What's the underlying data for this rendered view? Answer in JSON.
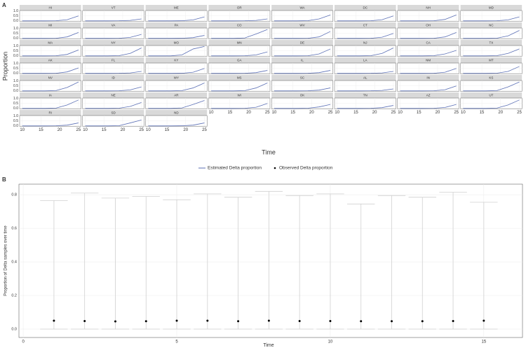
{
  "chart_data": [
    {
      "type": "small-multiples",
      "panel_label": "A",
      "xlabel": "Time",
      "ylabel": "Proportion",
      "x": [
        10,
        13,
        16,
        19,
        22,
        25
      ],
      "xlim": [
        9.3,
        25.7
      ],
      "ylim": [
        -0.05,
        1.05
      ],
      "xticks": [
        10,
        15,
        20,
        25
      ],
      "yticks": [
        {
          "value": 0,
          "label": "0.0"
        },
        {
          "value": 0.5,
          "label": "0.5"
        },
        {
          "value": 1,
          "label": "1.0"
        }
      ],
      "color": "#5b6fb5",
      "band_color": "#b3b3b3",
      "legend": [
        {
          "name": "Estimated Delta proportion",
          "color": "#5b6fb5"
        },
        {
          "name": "Observed Delta proportion",
          "color": "#000000"
        }
      ],
      "panels": [
        {
          "name": "HI",
          "values": [
            0,
            0,
            0,
            0.01,
            0.12,
            0.5
          ]
        },
        {
          "name": "VT",
          "values": [
            0,
            0,
            0,
            0.01,
            0.05,
            0.2
          ]
        },
        {
          "name": "ME",
          "values": [
            0,
            0,
            0,
            0.01,
            0.1,
            0.4
          ]
        },
        {
          "name": "OR",
          "values": [
            0,
            0,
            0,
            0.01,
            0.05,
            0.2
          ]
        },
        {
          "name": "WA",
          "values": [
            0,
            0,
            0,
            0.02,
            0.2,
            0.6
          ]
        },
        {
          "name": "DC",
          "values": [
            0,
            0,
            0,
            0.01,
            0.12,
            0.5
          ]
        },
        {
          "name": "NH",
          "values": [
            0,
            0,
            0,
            0.01,
            0.15,
            0.6
          ]
        },
        {
          "name": "MD",
          "values": [
            0,
            0,
            0,
            0.01,
            0.1,
            0.4
          ]
        },
        {
          "name": "MI",
          "values": [
            0,
            0,
            0,
            0.01,
            0.15,
            0.6
          ]
        },
        {
          "name": "VA",
          "values": [
            0,
            0,
            0,
            0.01,
            0.1,
            0.4
          ]
        },
        {
          "name": "PA",
          "values": [
            0,
            0,
            0,
            0.01,
            0.08,
            0.3
          ]
        },
        {
          "name": "CO",
          "values": [
            0,
            0,
            0,
            0.05,
            0.45,
            0.9
          ]
        },
        {
          "name": "WV",
          "values": [
            0,
            0,
            0,
            0.01,
            0.15,
            0.7
          ]
        },
        {
          "name": "CT",
          "values": [
            0,
            0,
            0,
            0.01,
            0.12,
            0.5
          ]
        },
        {
          "name": "OH",
          "values": [
            0,
            0,
            0,
            0.01,
            0.15,
            0.6
          ]
        },
        {
          "name": "NC",
          "values": [
            0,
            0,
            0,
            0.02,
            0.25,
            0.8
          ]
        },
        {
          "name": "MA",
          "values": [
            0,
            0,
            0,
            0.01,
            0.15,
            0.6
          ]
        },
        {
          "name": "NY",
          "values": [
            0,
            0,
            0,
            0.02,
            0.25,
            0.8
          ]
        },
        {
          "name": "MO",
          "values": [
            0,
            0,
            0,
            0.1,
            0.7,
            0.95
          ]
        },
        {
          "name": "MN",
          "values": [
            0,
            0,
            0,
            0.01,
            0.1,
            0.4
          ]
        },
        {
          "name": "DE",
          "values": [
            0,
            0,
            0,
            0.01,
            0.2,
            0.7
          ]
        },
        {
          "name": "NJ",
          "values": [
            0,
            0,
            0,
            0.02,
            0.25,
            0.8
          ]
        },
        {
          "name": "CA",
          "values": [
            0,
            0,
            0,
            0.02,
            0.2,
            0.55
          ]
        },
        {
          "name": "TX",
          "values": [
            0,
            0,
            0,
            0.02,
            0.25,
            0.7
          ]
        },
        {
          "name": "AK",
          "values": [
            0,
            0,
            0,
            0.01,
            0.15,
            0.55
          ]
        },
        {
          "name": "FL",
          "values": [
            0,
            0,
            0,
            0.01,
            0.05,
            0.2
          ]
        },
        {
          "name": "KY",
          "values": [
            0,
            0,
            0,
            0.01,
            0.12,
            0.5
          ]
        },
        {
          "name": "GA",
          "values": [
            0,
            0,
            0,
            0.01,
            0.08,
            0.3
          ]
        },
        {
          "name": "IL",
          "values": [
            0,
            0,
            0,
            0.01,
            0.08,
            0.3
          ]
        },
        {
          "name": "LA",
          "values": [
            0,
            0,
            0,
            0.01,
            0.05,
            0.2
          ]
        },
        {
          "name": "NM",
          "values": [
            0,
            0,
            0,
            0.01,
            0.12,
            0.5
          ]
        },
        {
          "name": "MT",
          "values": [
            0,
            0,
            0,
            0.02,
            0.2,
            0.7
          ]
        },
        {
          "name": "NV",
          "values": [
            0,
            0,
            0,
            0.03,
            0.35,
            0.9
          ]
        },
        {
          "name": "ID",
          "values": [
            0,
            0,
            0,
            0.01,
            0.1,
            0.4
          ]
        },
        {
          "name": "WY",
          "values": [
            0,
            0,
            0,
            0.03,
            0.3,
            0.8
          ]
        },
        {
          "name": "MS",
          "values": [
            0,
            0,
            0,
            0.03,
            0.3,
            0.8
          ]
        },
        {
          "name": "SC",
          "values": [
            0,
            0,
            0,
            0.01,
            0.08,
            0.3
          ]
        },
        {
          "name": "AL",
          "values": [
            0,
            0,
            0,
            0.01,
            0.05,
            0.2
          ]
        },
        {
          "name": "IN",
          "values": [
            0,
            0,
            0,
            0.01,
            0.12,
            0.5
          ]
        },
        {
          "name": "KS",
          "values": [
            0,
            0,
            0,
            0.03,
            0.4,
            0.9
          ]
        },
        {
          "name": "IA",
          "values": [
            0,
            0,
            0,
            0.03,
            0.35,
            0.85
          ]
        },
        {
          "name": "NE",
          "values": [
            0,
            0,
            0,
            0.02,
            0.2,
            0.6
          ]
        },
        {
          "name": "AR",
          "values": [
            0,
            0,
            0,
            0.05,
            0.4,
            0.8
          ]
        },
        {
          "name": "WI",
          "values": [
            0,
            0,
            0,
            0.01,
            0.12,
            0.5
          ]
        },
        {
          "name": "OK",
          "values": [
            0,
            0,
            0,
            0.02,
            0.15,
            0.4
          ]
        },
        {
          "name": "TN",
          "values": [
            0,
            0,
            0,
            0.01,
            0.08,
            0.3
          ]
        },
        {
          "name": "AZ",
          "values": [
            0,
            0,
            0,
            0.01,
            0.1,
            0.4
          ]
        },
        {
          "name": "UT",
          "values": [
            0,
            0,
            0,
            0.03,
            0.35,
            0.85
          ]
        },
        {
          "name": "RI",
          "values": [
            0,
            0,
            0,
            0.01,
            0.08,
            0.3
          ]
        },
        {
          "name": "SD",
          "values": [
            0,
            0,
            0,
            0.02,
            0.3,
            0.6
          ]
        },
        {
          "name": "ND",
          "values": [
            0,
            0,
            0,
            0.01,
            0.08,
            0.3
          ]
        }
      ]
    },
    {
      "type": "errorbar",
      "panel_label": "B",
      "xlabel": "Time",
      "ylabel": "Proportion of Delta samples over time",
      "x": [
        1,
        2,
        3,
        4,
        5,
        6,
        7,
        8,
        9,
        10,
        11,
        12,
        13,
        14,
        15
      ],
      "values": [
        0.05,
        0.048,
        0.046,
        0.047,
        0.05,
        0.05,
        0.047,
        0.05,
        0.048,
        0.048,
        0.047,
        0.047,
        0.047,
        0.048,
        0.05
      ],
      "lower": [
        0,
        0,
        0,
        0,
        0,
        0,
        0,
        0,
        0,
        0,
        0,
        0,
        0,
        0,
        0
      ],
      "upper": [
        0.765,
        0.81,
        0.78,
        0.79,
        0.77,
        0.805,
        0.785,
        0.82,
        0.795,
        0.805,
        0.745,
        0.795,
        0.785,
        0.815,
        0.755
      ],
      "xlim": [
        -0.14,
        16.26
      ],
      "ylim": [
        -0.05,
        0.863
      ],
      "xticks": [
        0,
        5,
        10,
        15
      ],
      "yticks": [
        {
          "value": 0,
          "label": "0.0"
        },
        {
          "value": 0.2,
          "label": "0.2"
        },
        {
          "value": 0.4,
          "label": "0.4"
        },
        {
          "value": 0.6,
          "label": "0.6"
        },
        {
          "value": 0.8,
          "label": "0.8"
        }
      ],
      "grid": true,
      "color": "#000000",
      "bar_color": "#d0d0d0"
    }
  ]
}
